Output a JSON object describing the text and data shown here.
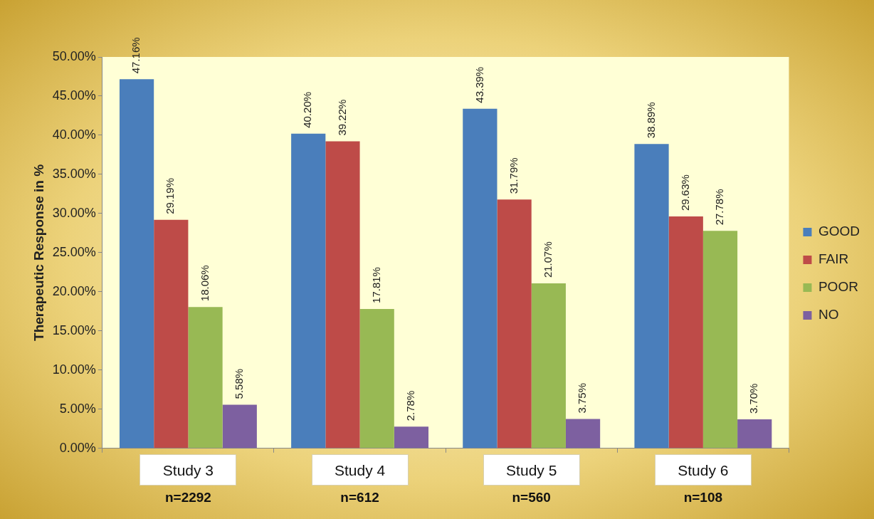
{
  "chart_data": {
    "type": "bar",
    "ylabel": "Therapeutic Response in %",
    "categories": [
      "Study 3",
      "Study 4",
      "Study 5",
      "Study 6"
    ],
    "series": [
      {
        "name": "GOOD",
        "color": "#4a7ebb",
        "values": [
          47.16,
          40.2,
          43.39,
          38.89
        ],
        "value_labels": [
          "47.16%",
          "40.20%",
          "43.39%",
          "38.89%"
        ]
      },
      {
        "name": "FAIR",
        "color": "#be4b48",
        "values": [
          29.19,
          39.22,
          31.79,
          29.63
        ],
        "value_labels": [
          "29.19%",
          "39.22%",
          "31.79%",
          "29.63%"
        ]
      },
      {
        "name": "POOR",
        "color": "#98b954",
        "values": [
          18.06,
          17.81,
          21.07,
          27.78
        ],
        "value_labels": [
          "18.06%",
          "17.81%",
          "21.07%",
          "27.78%"
        ]
      },
      {
        "name": "NO",
        "color": "#7d60a0",
        "values": [
          5.58,
          2.78,
          3.75,
          3.7
        ],
        "value_labels": [
          "5.58%",
          "2.78%",
          "3.75%",
          "3.70%"
        ]
      }
    ],
    "ylim": [
      0,
      50
    ],
    "yticks": [
      {
        "value": 0,
        "label": "0.00%"
      },
      {
        "value": 5,
        "label": "5.00%"
      },
      {
        "value": 10,
        "label": "10.00%"
      },
      {
        "value": 15,
        "label": "15.00%"
      },
      {
        "value": 20,
        "label": "20.00%"
      },
      {
        "value": 25,
        "label": "25.00%"
      },
      {
        "value": 30,
        "label": "30.00%"
      },
      {
        "value": 35,
        "label": "35.00%"
      },
      {
        "value": 40,
        "label": "40.00%"
      },
      {
        "value": 45,
        "label": "45.00%"
      },
      {
        "value": 50,
        "label": "50.00%"
      }
    ],
    "annotations": [
      "n=2292",
      "n=612",
      "n=560",
      "n=108"
    ],
    "grid": false,
    "legend": "right"
  }
}
